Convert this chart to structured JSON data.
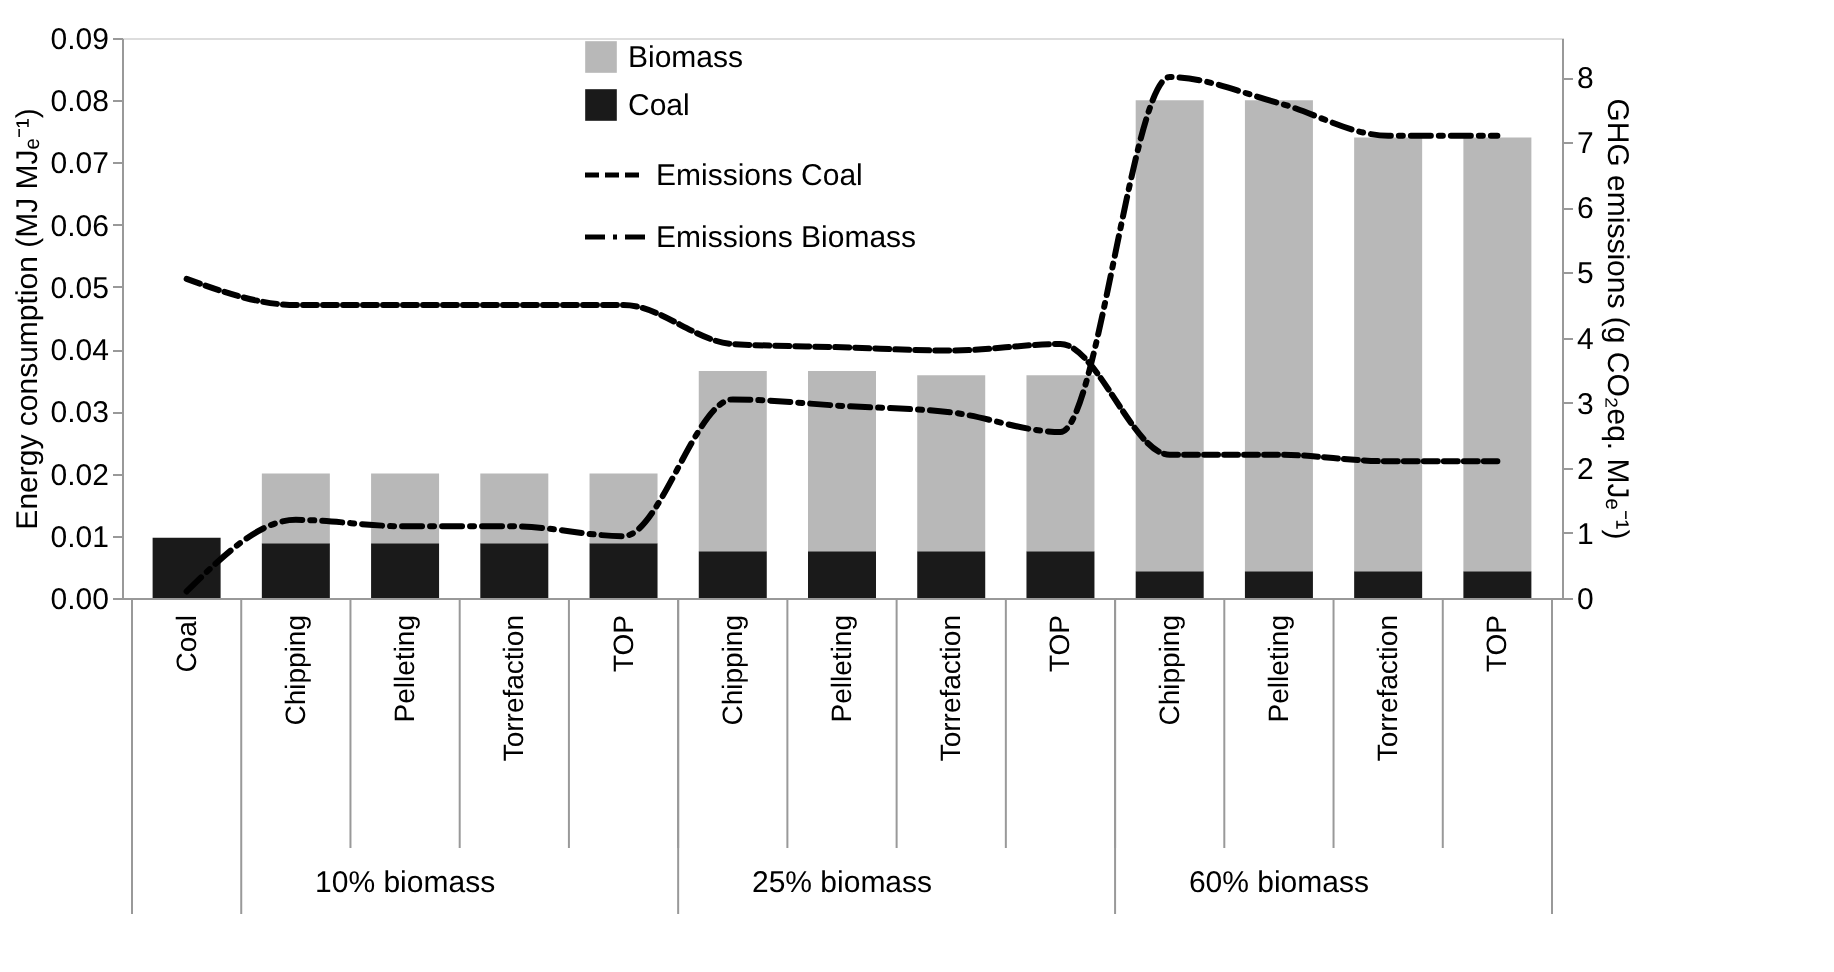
{
  "chart_data": {
    "type": "bar",
    "stacked": true,
    "categories": [
      "Coal",
      "Chipping",
      "Pelleting",
      "Torrefaction",
      "TOP",
      "Chipping",
      "Pelleting",
      "Torrefaction",
      "TOP",
      "Chipping",
      "Pelleting",
      "Torrefaction",
      "TOP"
    ],
    "ylabel": "Energy consumption (MJ MJₑ⁻¹)",
    "y2label": "GHG emissions (g CO₂eq. MJₑ⁻¹)",
    "annotations": [
      "10% biomass",
      "25% biomass",
      "60% biomass"
    ],
    "ylim": [
      0,
      0.09
    ],
    "yticks": [
      {
        "value": 0,
        "label": "0.00"
      },
      0.01,
      0.02,
      0.03,
      0.04,
      0.05,
      0.06,
      0.07,
      0.08,
      0.09
    ],
    "y2lim": [
      0,
      8.6
    ],
    "y2ticks": [
      0,
      1,
      2,
      3,
      4,
      5,
      6,
      7,
      8
    ],
    "grid": false,
    "legend": "top",
    "marker": "none",
    "series": [
      {
        "name": "Coal",
        "color": "#1a1a1a",
        "values": [
          0.0097,
          0.0088,
          0.0088,
          0.0088,
          0.0088,
          0.0075,
          0.0075,
          0.0075,
          0.0075,
          0.0043,
          0.0043,
          0.0043,
          0.0043
        ]
      },
      {
        "name": "Biomass",
        "color": "#b8b8b8",
        "values": [
          null,
          0.0112,
          0.0112,
          0.0112,
          0.0112,
          0.029,
          0.029,
          0.0283,
          0.0283,
          0.0757,
          0.0757,
          0.0697,
          0.0697
        ]
      },
      {
        "name": "Emissions Coal",
        "type": "line",
        "axis": "y2",
        "color": "#000000",
        "line_style": "dashed",
        "values": [
          4.9,
          4.5,
          4.5,
          4.5,
          4.5,
          3.9,
          3.85,
          3.8,
          3.9,
          2.2,
          2.2,
          2.1,
          2.1
        ]
      },
      {
        "name": "Emissions Biomass",
        "type": "line",
        "axis": "y2",
        "color": "#000000",
        "line_style": "dashdot",
        "values": [
          0.1,
          1.2,
          1.1,
          1.1,
          0.95,
          3.05,
          2.95,
          2.85,
          2.55,
          8.0,
          7.6,
          7.1,
          7.1
        ]
      }
    ]
  }
}
